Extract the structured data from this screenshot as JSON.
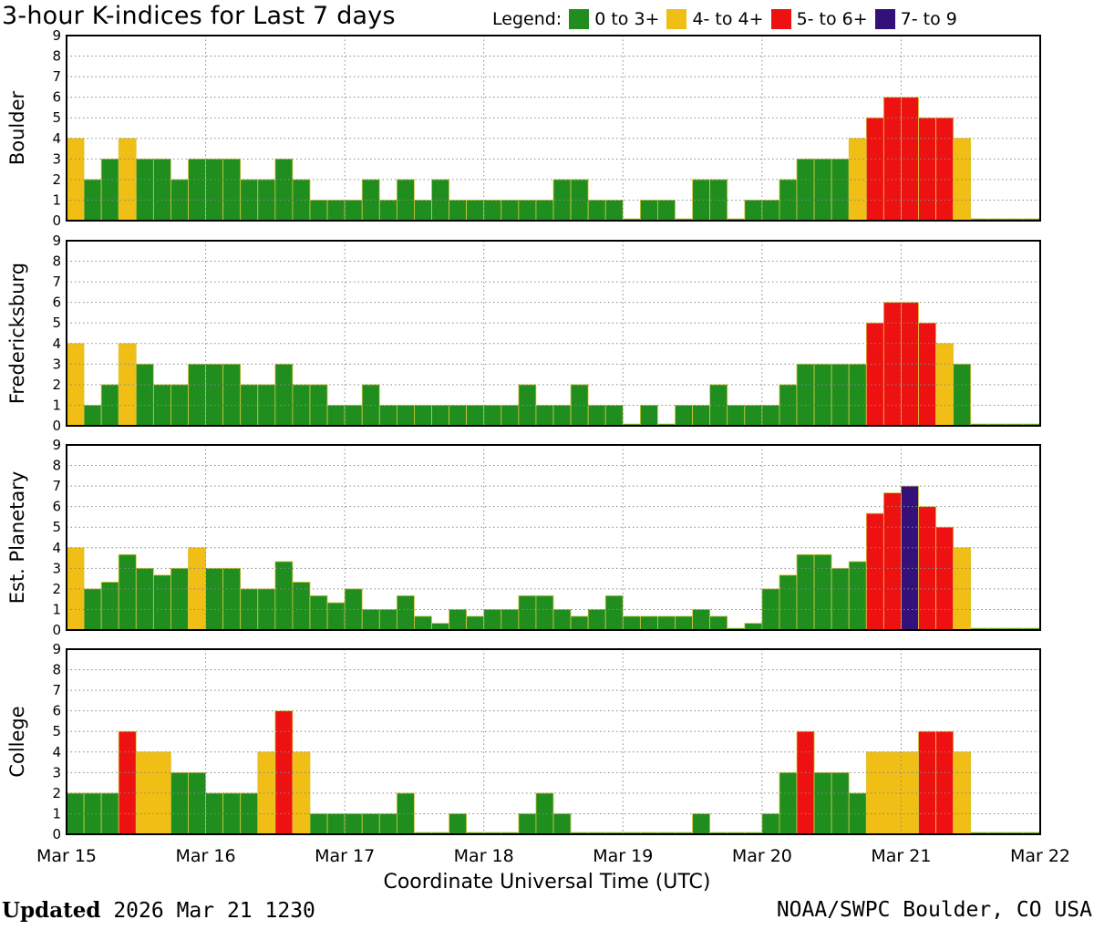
{
  "header": {
    "title": "3-hour K-indices for Last 7 days",
    "legend_label": "Legend:"
  },
  "legend": [
    {
      "label": "0 to 3+",
      "color": "#1f8e1f"
    },
    {
      "label": "4- to 4+",
      "color": "#f0be14"
    },
    {
      "label": "5- to 6+",
      "color": "#ee1111"
    },
    {
      "label": "7- to 9",
      "color": "#33107a"
    }
  ],
  "chart_data": [
    {
      "type": "bar",
      "ylabel": "Boulder",
      "ylim": [
        0,
        9
      ],
      "yticks": [
        "0",
        "1",
        "2",
        "3",
        "4",
        "5",
        "6",
        "7",
        "8",
        "9"
      ],
      "xticks": [
        "Mar 15",
        "Mar 16",
        "Mar 17",
        "Mar 18",
        "Mar 19",
        "Mar 20",
        "Mar 21",
        "Mar 22"
      ],
      "grid": true,
      "values": [
        4,
        2,
        3,
        4,
        3,
        3,
        2,
        3,
        3,
        3,
        2,
        2,
        3,
        2,
        1,
        1,
        1,
        2,
        1,
        2,
        1,
        2,
        1,
        1,
        1,
        1,
        1,
        1,
        2,
        2,
        1,
        1,
        0,
        1,
        1,
        0,
        2,
        2,
        0,
        1,
        1,
        2,
        3,
        3,
        3,
        4,
        5,
        6,
        6,
        5,
        5,
        4,
        0,
        0,
        0,
        0
      ]
    },
    {
      "type": "bar",
      "ylabel": "Fredericksburg",
      "ylim": [
        0,
        9
      ],
      "yticks": [
        "0",
        "1",
        "2",
        "3",
        "4",
        "5",
        "6",
        "7",
        "8",
        "9"
      ],
      "xticks": [
        "Mar 15",
        "Mar 16",
        "Mar 17",
        "Mar 18",
        "Mar 19",
        "Mar 20",
        "Mar 21",
        "Mar 22"
      ],
      "grid": true,
      "values": [
        4,
        1,
        2,
        4,
        3,
        2,
        2,
        3,
        3,
        3,
        2,
        2,
        3,
        2,
        2,
        1,
        1,
        2,
        1,
        1,
        1,
        1,
        1,
        1,
        1,
        1,
        2,
        1,
        1,
        2,
        1,
        1,
        0,
        1,
        0,
        1,
        1,
        2,
        1,
        1,
        1,
        2,
        3,
        3,
        3,
        3,
        5,
        6,
        6,
        5,
        4,
        3,
        0,
        0,
        0,
        0
      ]
    },
    {
      "type": "bar",
      "ylabel": "Est. Planetary",
      "ylim": [
        0,
        9
      ],
      "yticks": [
        "0",
        "1",
        "2",
        "3",
        "4",
        "5",
        "6",
        "7",
        "8",
        "9"
      ],
      "xticks": [
        "Mar 15",
        "Mar 16",
        "Mar 17",
        "Mar 18",
        "Mar 19",
        "Mar 20",
        "Mar 21",
        "Mar 22"
      ],
      "grid": true,
      "values": [
        4,
        2,
        2.33,
        3.67,
        3,
        2.67,
        3,
        4,
        3,
        3,
        2,
        2,
        3.33,
        2.33,
        1.67,
        1.33,
        2,
        1,
        1,
        1.67,
        0.67,
        0.33,
        1,
        0.67,
        1,
        1,
        1.67,
        1.67,
        1,
        0.67,
        1,
        1.67,
        0.67,
        0.67,
        0.67,
        0.67,
        1,
        0.67,
        0,
        0.33,
        2,
        2.67,
        3.67,
        3.67,
        3,
        3.33,
        5.67,
        6.67,
        7,
        6,
        5,
        4,
        0,
        0,
        0,
        0
      ]
    },
    {
      "type": "bar",
      "ylabel": "College",
      "ylim": [
        0,
        9
      ],
      "yticks": [
        "0",
        "1",
        "2",
        "3",
        "4",
        "5",
        "6",
        "7",
        "8",
        "9"
      ],
      "xticks": [
        "Mar 15",
        "Mar 16",
        "Mar 17",
        "Mar 18",
        "Mar 19",
        "Mar 20",
        "Mar 21",
        "Mar 22"
      ],
      "grid": true,
      "values": [
        2,
        2,
        2,
        5,
        4,
        4,
        3,
        3,
        2,
        2,
        2,
        4,
        6,
        4,
        1,
        1,
        1,
        1,
        1,
        2,
        0,
        0,
        1,
        0,
        0,
        0,
        1,
        2,
        1,
        0,
        0,
        0,
        0,
        0,
        0,
        0,
        1,
        0,
        0,
        0,
        1,
        3,
        5,
        3,
        3,
        2,
        4,
        4,
        4,
        5,
        5,
        4,
        0,
        0,
        0,
        0
      ]
    }
  ],
  "xaxis": {
    "title": "Coordinate Universal Time (UTC)"
  },
  "footer": {
    "updated_label": "Updated",
    "updated_value": "2026 Mar 21 1230",
    "credit": "NOAA/SWPC Boulder, CO USA"
  }
}
